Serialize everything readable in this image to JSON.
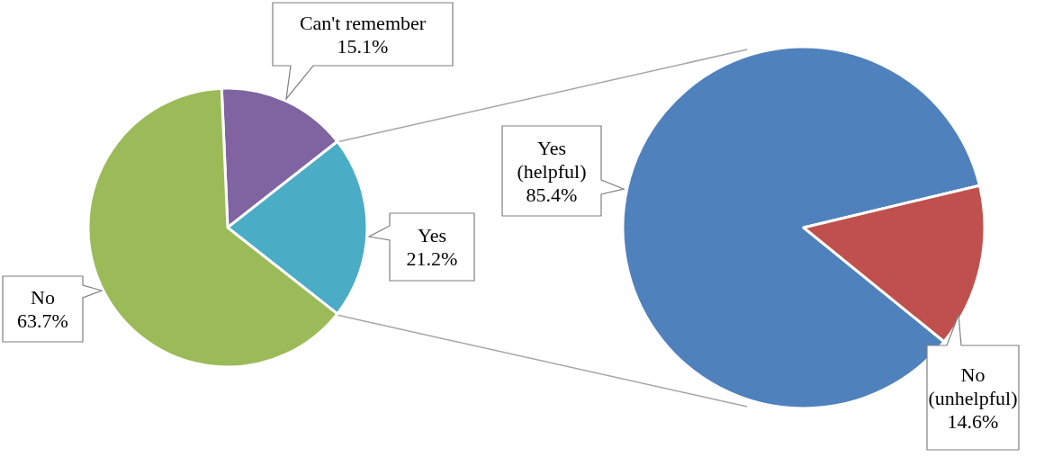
{
  "chart_data": [
    {
      "type": "pie",
      "categories": [
        "Can't remember",
        "Yes",
        "No"
      ],
      "values": [
        15.1,
        21.2,
        63.7
      ],
      "colors": [
        "#8064a2",
        "#4bacc6",
        "#9bbb59"
      ],
      "value_labels": [
        "15.1%",
        "21.2%",
        "63.7%"
      ]
    },
    {
      "type": "pie",
      "categories": [
        "Yes (helpful)",
        "No (unhelpful)"
      ],
      "values": [
        85.4,
        14.6
      ],
      "colors": [
        "#4f81bd",
        "#c0504d"
      ],
      "value_labels": [
        "85.4%",
        "14.6%"
      ]
    }
  ]
}
